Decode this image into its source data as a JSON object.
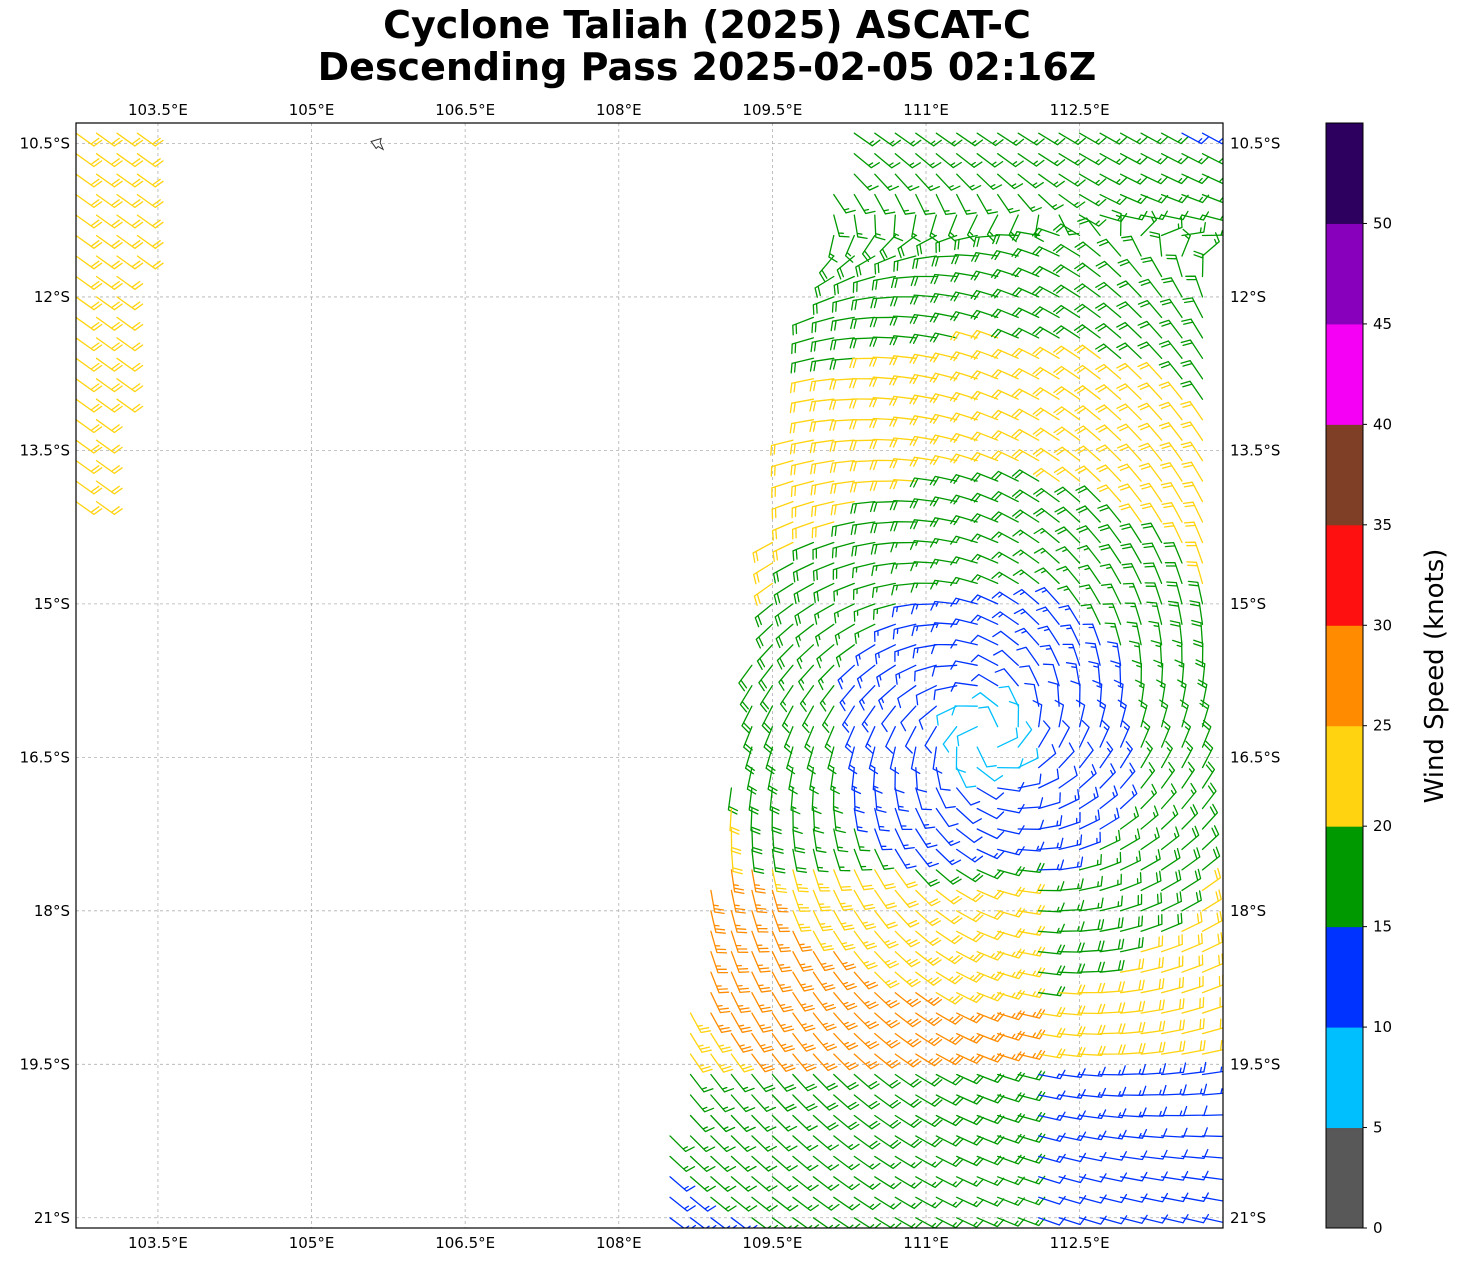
{
  "title": {
    "line1": "Cyclone Taliah (2025) ASCAT-C",
    "line2": "Descending Pass 2025-02-05 02:16Z"
  },
  "map": {
    "lon_range": [
      102.7,
      113.9
    ],
    "lat_range": [
      -21.1,
      -10.3
    ],
    "lon_ticks": [
      {
        "value": 103.5,
        "label": "103.5°E"
      },
      {
        "value": 105.0,
        "label": "105°E"
      },
      {
        "value": 106.5,
        "label": "106.5°E"
      },
      {
        "value": 108.0,
        "label": "108°E"
      },
      {
        "value": 109.5,
        "label": "109.5°E"
      },
      {
        "value": 111.0,
        "label": "111°E"
      },
      {
        "value": 112.5,
        "label": "112.5°E"
      }
    ],
    "lat_ticks": [
      {
        "value": -10.5,
        "label": "10.5°S"
      },
      {
        "value": -12.0,
        "label": "12°S"
      },
      {
        "value": -13.5,
        "label": "13.5°S"
      },
      {
        "value": -15.0,
        "label": "15°S"
      },
      {
        "value": -16.5,
        "label": "16.5°S"
      },
      {
        "value": -18.0,
        "label": "18°S"
      },
      {
        "value": -19.5,
        "label": "19.5°S"
      },
      {
        "value": -21.0,
        "label": "21°S"
      }
    ],
    "gridlines": true,
    "island": {
      "lon": 105.65,
      "lat": -10.5
    },
    "cyclone_center": {
      "lon": 111.6,
      "lat": -16.3
    }
  },
  "colorbar": {
    "label": "Wind Speed (knots)",
    "bins": [
      {
        "from": 0,
        "to": 5,
        "color": "#585858"
      },
      {
        "from": 5,
        "to": 10,
        "color": "#00bfff"
      },
      {
        "from": 10,
        "to": 15,
        "color": "#0033ff"
      },
      {
        "from": 15,
        "to": 20,
        "color": "#009900"
      },
      {
        "from": 20,
        "to": 25,
        "color": "#ffd30f"
      },
      {
        "from": 25,
        "to": 30,
        "color": "#ff8c00"
      },
      {
        "from": 30,
        "to": 35,
        "color": "#ff1010"
      },
      {
        "from": 35,
        "to": 40,
        "color": "#7f3f26"
      },
      {
        "from": 40,
        "to": 45,
        "color": "#f500f5"
      },
      {
        "from": 45,
        "to": 50,
        "color": "#8800bb"
      },
      {
        "from": 50,
        "to": 55,
        "color": "#2d005f"
      }
    ],
    "tick_values": [
      "0",
      "5",
      "10",
      "15",
      "20",
      "25",
      "30",
      "35",
      "40",
      "45",
      "50"
    ]
  }
}
